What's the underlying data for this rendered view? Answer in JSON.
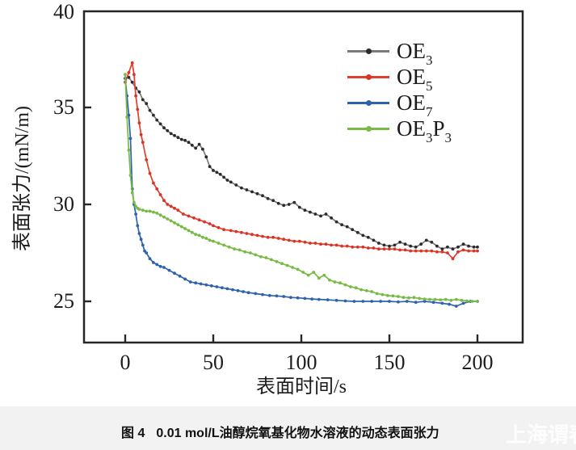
{
  "figure": {
    "caption_label": "图 4",
    "caption_text": "0.01 mol/L油醇烷氧基化物水溶液的动态表面张力",
    "watermark": "上海谓春"
  },
  "chart_data": {
    "type": "line",
    "title": "",
    "xlabel": "表面时间/s",
    "ylabel": "表面张力/(mN/m)",
    "xlim": [
      -24,
      226
    ],
    "ylim": [
      22.8,
      40
    ],
    "x_ticks": [
      0,
      50,
      100,
      150,
      200
    ],
    "y_ticks": [
      40,
      35,
      30,
      25
    ],
    "x_tick_labels": [
      "0",
      "50",
      "100",
      "150",
      "200"
    ],
    "y_tick_labels": [
      "40",
      "35",
      "30",
      "25"
    ],
    "grid": false,
    "legend_position": "upper right",
    "axis_color": "#262626",
    "series": [
      {
        "name": "OE3",
        "label_parts": {
          "base": "OE",
          "sub": "3",
          "base2": "",
          "sub2": ""
        },
        "line_color": "#7a7a7a",
        "marker_color": "#2b2b2b",
        "points": [
          [
            0,
            36.5
          ],
          [
            2,
            36.55
          ],
          [
            4,
            36.3
          ],
          [
            6,
            36.0
          ],
          [
            8,
            35.8
          ],
          [
            10,
            35.4
          ],
          [
            12,
            35.2
          ],
          [
            14,
            34.85
          ],
          [
            16,
            34.6
          ],
          [
            18,
            34.35
          ],
          [
            20,
            34.15
          ],
          [
            22,
            33.95
          ],
          [
            24,
            33.8
          ],
          [
            26,
            33.65
          ],
          [
            28,
            33.55
          ],
          [
            30,
            33.45
          ],
          [
            32,
            33.35
          ],
          [
            34,
            33.3
          ],
          [
            36,
            33.2
          ],
          [
            38,
            33.05
          ],
          [
            40,
            32.9
          ],
          [
            42,
            33.1
          ],
          [
            44,
            32.85
          ],
          [
            46,
            32.45
          ],
          [
            48,
            31.95
          ],
          [
            50,
            31.75
          ],
          [
            52,
            31.65
          ],
          [
            54,
            31.55
          ],
          [
            56,
            31.4
          ],
          [
            58,
            31.25
          ],
          [
            60,
            31.15
          ],
          [
            63,
            31.0
          ],
          [
            66,
            30.85
          ],
          [
            69,
            30.75
          ],
          [
            72,
            30.65
          ],
          [
            75,
            30.55
          ],
          [
            78,
            30.45
          ],
          [
            81,
            30.3
          ],
          [
            84,
            30.2
          ],
          [
            87,
            30.05
          ],
          [
            90,
            29.95
          ],
          [
            93,
            30.0
          ],
          [
            96,
            30.1
          ],
          [
            99,
            29.85
          ],
          [
            102,
            29.7
          ],
          [
            105,
            29.6
          ],
          [
            108,
            29.5
          ],
          [
            111,
            29.4
          ],
          [
            114,
            29.5
          ],
          [
            117,
            29.3
          ],
          [
            120,
            29.1
          ],
          [
            123,
            28.95
          ],
          [
            126,
            28.85
          ],
          [
            129,
            28.7
          ],
          [
            132,
            28.55
          ],
          [
            135,
            28.4
          ],
          [
            138,
            28.3
          ],
          [
            141,
            28.15
          ],
          [
            144,
            28.0
          ],
          [
            147,
            27.9
          ],
          [
            150,
            27.85
          ],
          [
            153,
            27.9
          ],
          [
            156,
            28.05
          ],
          [
            159,
            27.95
          ],
          [
            162,
            27.85
          ],
          [
            165,
            27.8
          ],
          [
            168,
            27.95
          ],
          [
            171,
            28.15
          ],
          [
            174,
            28.05
          ],
          [
            177,
            27.85
          ],
          [
            180,
            27.7
          ],
          [
            183,
            27.8
          ],
          [
            186,
            27.7
          ],
          [
            189,
            27.8
          ],
          [
            192,
            27.95
          ],
          [
            195,
            27.85
          ],
          [
            198,
            27.8
          ],
          [
            200,
            27.8
          ]
        ]
      },
      {
        "name": "OE5",
        "label_parts": {
          "base": "OE",
          "sub": "5",
          "base2": "",
          "sub2": ""
        },
        "line_color": "#e2402f",
        "marker_color": "#d93425",
        "points": [
          [
            0,
            36.3
          ],
          [
            2,
            36.8
          ],
          [
            4,
            37.3
          ],
          [
            5,
            36.7
          ],
          [
            6,
            35.6
          ],
          [
            7,
            34.9
          ],
          [
            8,
            34.2
          ],
          [
            9,
            33.6
          ],
          [
            10,
            33.2
          ],
          [
            12,
            32.3
          ],
          [
            14,
            31.6
          ],
          [
            16,
            31.1
          ],
          [
            18,
            30.8
          ],
          [
            20,
            30.5
          ],
          [
            22,
            30.2
          ],
          [
            24,
            30.0
          ],
          [
            26,
            29.9
          ],
          [
            28,
            29.8
          ],
          [
            30,
            29.7
          ],
          [
            33,
            29.5
          ],
          [
            36,
            29.4
          ],
          [
            39,
            29.3
          ],
          [
            42,
            29.2
          ],
          [
            45,
            29.1
          ],
          [
            48,
            29.0
          ],
          [
            50,
            28.9
          ],
          [
            53,
            28.8
          ],
          [
            56,
            28.7
          ],
          [
            60,
            28.65
          ],
          [
            63,
            28.6
          ],
          [
            66,
            28.55
          ],
          [
            69,
            28.5
          ],
          [
            72,
            28.45
          ],
          [
            75,
            28.4
          ],
          [
            78,
            28.35
          ],
          [
            81,
            28.3
          ],
          [
            84,
            28.3
          ],
          [
            87,
            28.25
          ],
          [
            90,
            28.2
          ],
          [
            93,
            28.15
          ],
          [
            96,
            28.1
          ],
          [
            99,
            28.1
          ],
          [
            102,
            28.05
          ],
          [
            105,
            28.0
          ],
          [
            108,
            28.0
          ],
          [
            111,
            27.95
          ],
          [
            114,
            27.95
          ],
          [
            117,
            27.9
          ],
          [
            120,
            27.9
          ],
          [
            123,
            27.85
          ],
          [
            126,
            27.85
          ],
          [
            129,
            27.8
          ],
          [
            132,
            27.8
          ],
          [
            135,
            27.8
          ],
          [
            138,
            27.75
          ],
          [
            141,
            27.75
          ],
          [
            144,
            27.7
          ],
          [
            147,
            27.7
          ],
          [
            150,
            27.7
          ],
          [
            153,
            27.7
          ],
          [
            156,
            27.65
          ],
          [
            159,
            27.65
          ],
          [
            162,
            27.6
          ],
          [
            165,
            27.6
          ],
          [
            168,
            27.6
          ],
          [
            171,
            27.6
          ],
          [
            174,
            27.6
          ],
          [
            177,
            27.55
          ],
          [
            180,
            27.55
          ],
          [
            183,
            27.5
          ],
          [
            186,
            27.2
          ],
          [
            189,
            27.55
          ],
          [
            192,
            27.65
          ],
          [
            195,
            27.6
          ],
          [
            198,
            27.6
          ],
          [
            200,
            27.6
          ]
        ]
      },
      {
        "name": "OE7",
        "label_parts": {
          "base": "OE",
          "sub": "7",
          "base2": "",
          "sub2": ""
        },
        "line_color": "#2f62ad",
        "marker_color": "#2f62ad",
        "points": [
          [
            0,
            36.5
          ],
          [
            1,
            35.6
          ],
          [
            2,
            34.6
          ],
          [
            3,
            33.4
          ],
          [
            4,
            30.8
          ],
          [
            5,
            30.0
          ],
          [
            6,
            29.5
          ],
          [
            7,
            28.9
          ],
          [
            8,
            28.5
          ],
          [
            9,
            28.2
          ],
          [
            10,
            27.9
          ],
          [
            11,
            27.6
          ],
          [
            12,
            27.5
          ],
          [
            14,
            27.2
          ],
          [
            16,
            27.0
          ],
          [
            18,
            26.9
          ],
          [
            20,
            26.8
          ],
          [
            22,
            26.75
          ],
          [
            25,
            26.6
          ],
          [
            28,
            26.45
          ],
          [
            31,
            26.3
          ],
          [
            34,
            26.15
          ],
          [
            37,
            26.0
          ],
          [
            40,
            25.95
          ],
          [
            43,
            25.9
          ],
          [
            46,
            25.85
          ],
          [
            49,
            25.8
          ],
          [
            52,
            25.75
          ],
          [
            55,
            25.7
          ],
          [
            58,
            25.65
          ],
          [
            61,
            25.6
          ],
          [
            64,
            25.55
          ],
          [
            67,
            25.5
          ],
          [
            70,
            25.45
          ],
          [
            74,
            25.4
          ],
          [
            78,
            25.35
          ],
          [
            82,
            25.3
          ],
          [
            86,
            25.28
          ],
          [
            90,
            25.25
          ],
          [
            94,
            25.2
          ],
          [
            98,
            25.18
          ],
          [
            102,
            25.15
          ],
          [
            106,
            25.12
          ],
          [
            110,
            25.1
          ],
          [
            115,
            25.08
          ],
          [
            120,
            25.05
          ],
          [
            125,
            25.02
          ],
          [
            130,
            25.0
          ],
          [
            135,
            25.0
          ],
          [
            140,
            25.0
          ],
          [
            145,
            25.0
          ],
          [
            150,
            25.0
          ],
          [
            155,
            24.97
          ],
          [
            160,
            25.0
          ],
          [
            165,
            24.95
          ],
          [
            170,
            25.0
          ],
          [
            175,
            24.95
          ],
          [
            180,
            24.9
          ],
          [
            184,
            24.85
          ],
          [
            188,
            24.75
          ],
          [
            192,
            24.9
          ],
          [
            196,
            25.0
          ],
          [
            200,
            25.0
          ]
        ]
      },
      {
        "name": "OE3P3",
        "label_parts": {
          "base": "OE",
          "sub": "3",
          "base2": "P",
          "sub2": "3"
        },
        "line_color": "#77bb44",
        "marker_color": "#77bb44",
        "points": [
          [
            0,
            36.7
          ],
          [
            1,
            34.5
          ],
          [
            2,
            32.8
          ],
          [
            3,
            31.5
          ],
          [
            4,
            30.6
          ],
          [
            5,
            30.1
          ],
          [
            6,
            29.9
          ],
          [
            7,
            29.8
          ],
          [
            8,
            29.75
          ],
          [
            10,
            29.7
          ],
          [
            12,
            29.65
          ],
          [
            14,
            29.65
          ],
          [
            16,
            29.6
          ],
          [
            18,
            29.55
          ],
          [
            20,
            29.45
          ],
          [
            22,
            29.35
          ],
          [
            24,
            29.25
          ],
          [
            26,
            29.15
          ],
          [
            28,
            29.05
          ],
          [
            30,
            28.95
          ],
          [
            32,
            28.85
          ],
          [
            34,
            28.75
          ],
          [
            36,
            28.65
          ],
          [
            38,
            28.55
          ],
          [
            40,
            28.45
          ],
          [
            42,
            28.4
          ],
          [
            44,
            28.3
          ],
          [
            46,
            28.25
          ],
          [
            48,
            28.15
          ],
          [
            50,
            28.1
          ],
          [
            53,
            28.0
          ],
          [
            56,
            27.9
          ],
          [
            59,
            27.8
          ],
          [
            62,
            27.7
          ],
          [
            65,
            27.65
          ],
          [
            68,
            27.55
          ],
          [
            71,
            27.5
          ],
          [
            74,
            27.4
          ],
          [
            77,
            27.3
          ],
          [
            80,
            27.25
          ],
          [
            83,
            27.15
          ],
          [
            86,
            27.05
          ],
          [
            89,
            26.95
          ],
          [
            92,
            26.85
          ],
          [
            95,
            26.75
          ],
          [
            98,
            26.65
          ],
          [
            101,
            26.5
          ],
          [
            104,
            26.35
          ],
          [
            107,
            26.5
          ],
          [
            110,
            26.2
          ],
          [
            113,
            26.35
          ],
          [
            116,
            26.1
          ],
          [
            119,
            26.0
          ],
          [
            122,
            25.95
          ],
          [
            125,
            25.85
          ],
          [
            128,
            25.75
          ],
          [
            131,
            25.7
          ],
          [
            134,
            25.6
          ],
          [
            137,
            25.55
          ],
          [
            140,
            25.5
          ],
          [
            143,
            25.4
          ],
          [
            146,
            25.35
          ],
          [
            149,
            25.3
          ],
          [
            152,
            25.28
          ],
          [
            155,
            25.25
          ],
          [
            158,
            25.2
          ],
          [
            161,
            25.18
          ],
          [
            164,
            25.2
          ],
          [
            167,
            25.15
          ],
          [
            170,
            25.12
          ],
          [
            173,
            25.1
          ],
          [
            176,
            25.1
          ],
          [
            179,
            25.08
          ],
          [
            182,
            25.1
          ],
          [
            185,
            25.05
          ],
          [
            188,
            25.1
          ],
          [
            191,
            25.05
          ],
          [
            194,
            25.02
          ],
          [
            197,
            25.0
          ],
          [
            200,
            25.0
          ]
        ]
      }
    ]
  }
}
